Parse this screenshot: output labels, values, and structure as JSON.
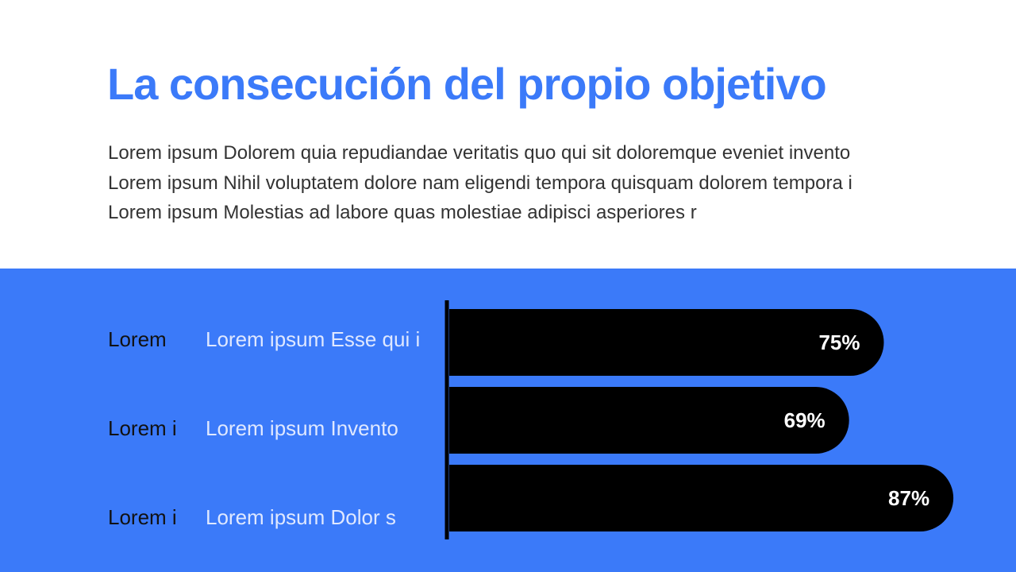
{
  "slide": {
    "title": "La consecución del propio objetivo",
    "paragraph": [
      "Lorem ipsum Dolorem quia repudiandae veritatis quo qui sit doloremque eveniet invento",
      "Lorem ipsum Nihil voluptatem dolore nam eligendi tempora quisquam dolorem tempora i",
      "Lorem ipsum Molestias ad labore quas molestiae adipisci asperiores r"
    ]
  },
  "colors": {
    "accent": "#3b7af9",
    "bar": "#000000",
    "bar_label": "#ffffff",
    "row_label": "#111111",
    "row_description": "#dfe8ff"
  },
  "chart_data": {
    "type": "bar",
    "orientation": "horizontal",
    "categories": [
      "Lorem",
      "Lorem i",
      "Lorem i"
    ],
    "descriptions": [
      "Lorem ipsum Esse qui i",
      "Lorem ipsum Invento",
      "Lorem ipsum Dolor s"
    ],
    "values": [
      75,
      69,
      87
    ],
    "value_labels": [
      "75%",
      "69%",
      "87%"
    ],
    "unit": "%",
    "xlim": [
      0,
      100
    ],
    "grid": false,
    "legend": "none"
  }
}
